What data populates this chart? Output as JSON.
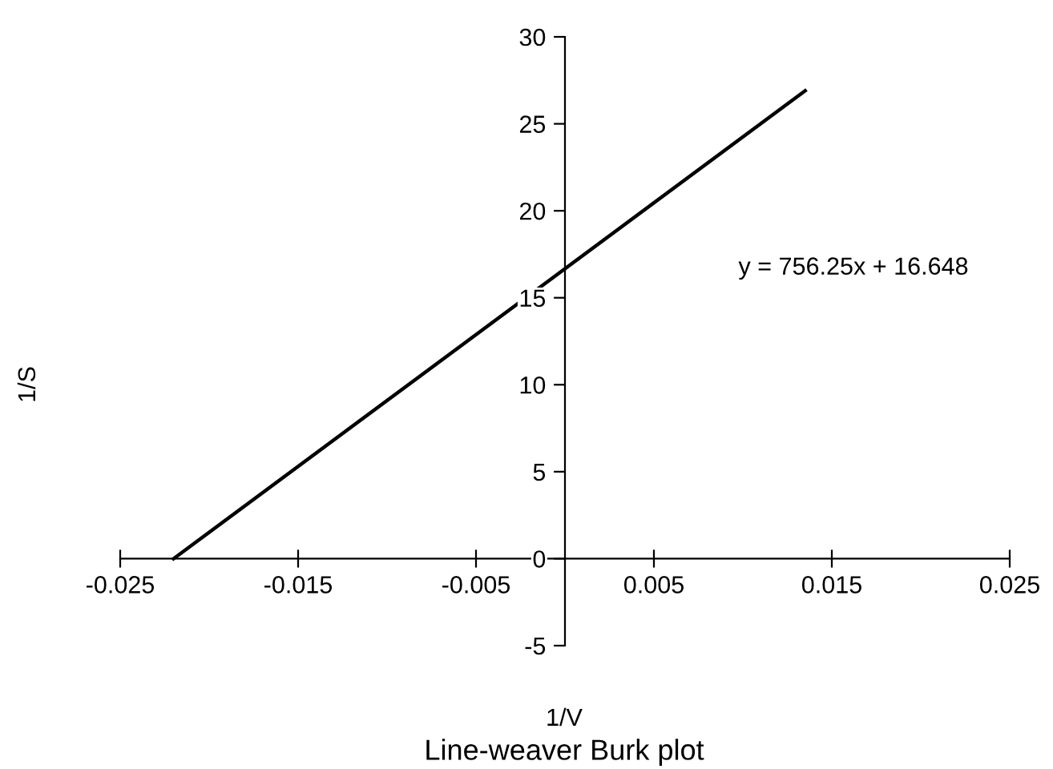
{
  "chart_data": {
    "type": "line",
    "title": "Line-weaver Burk plot",
    "xlabel": "1/V",
    "ylabel": "1/S",
    "series": [
      {
        "color": "#000000",
        "x": [
          -0.022,
          0.0135
        ],
        "values": [
          0,
          26.9
        ]
      }
    ],
    "xlim": [
      -0.025,
      0.025
    ],
    "xticks": [
      -0.025,
      -0.015,
      -0.005,
      0.005,
      0.015,
      0.025
    ],
    "ylim": [
      -5,
      30
    ],
    "yticks": [
      -5,
      0,
      5,
      10,
      15,
      20,
      25,
      30
    ],
    "annotations": [
      "y = 756.25x + 16.648"
    ],
    "grid": false,
    "marker": "none",
    "line_style": "solid"
  }
}
